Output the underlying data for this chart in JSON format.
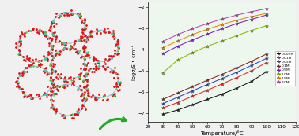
{
  "bg_left": "#fce8e6",
  "bg_right": "#eef7ee",
  "xlabel": "Temperature/°C",
  "ylabel": "logσ/S • cm⁻¹",
  "xlim": [
    20,
    120
  ],
  "ylim": [
    -7.4,
    -1.8
  ],
  "xticks": [
    20,
    30,
    40,
    50,
    60,
    70,
    80,
    90,
    100,
    110,
    120
  ],
  "yticks": [
    -7,
    -6,
    -5,
    -4,
    -3,
    -2
  ],
  "series": [
    {
      "label": "0.005M",
      "color": "#111111",
      "marker": "*",
      "x": [
        30,
        40,
        50,
        60,
        70,
        80,
        90,
        100
      ],
      "y": [
        -7.05,
        -6.85,
        -6.6,
        -6.35,
        -6.1,
        -5.82,
        -5.5,
        -5.05
      ]
    },
    {
      "label": "0.01M",
      "color": "#ee2222",
      "marker": "*",
      "x": [
        30,
        40,
        50,
        60,
        70,
        80,
        90,
        100
      ],
      "y": [
        -6.75,
        -6.5,
        -6.2,
        -5.92,
        -5.62,
        -5.32,
        -5.0,
        -4.62
      ]
    },
    {
      "label": "0.05M",
      "color": "#2244cc",
      "marker": "*",
      "x": [
        30,
        40,
        50,
        60,
        70,
        80,
        90,
        100
      ],
      "y": [
        -6.55,
        -6.25,
        -5.95,
        -5.65,
        -5.37,
        -5.07,
        -4.75,
        -4.42
      ]
    },
    {
      "label": "0.1M",
      "color": "#882222",
      "marker": "*",
      "x": [
        30,
        40,
        50,
        60,
        70,
        80,
        90,
        100
      ],
      "y": [
        -6.35,
        -6.05,
        -5.75,
        -5.45,
        -5.17,
        -4.87,
        -4.55,
        -4.22
      ]
    },
    {
      "label": "0.5M",
      "color": "#7722cc",
      "marker": "*",
      "x": [
        30,
        40,
        50,
        60,
        70,
        80,
        90,
        100
      ],
      "y": [
        -4.2,
        -3.85,
        -3.55,
        -3.28,
        -3.02,
        -2.78,
        -2.58,
        -2.38
      ]
    },
    {
      "label": "1.0M",
      "color": "#88bb00",
      "marker": "*",
      "x": [
        30,
        40,
        50,
        60,
        70,
        80,
        90,
        100
      ],
      "y": [
        -5.1,
        -4.5,
        -4.15,
        -3.85,
        -3.6,
        -3.35,
        -3.1,
        -2.88
      ]
    },
    {
      "label": "1.5M",
      "color": "#ee8800",
      "marker": "*",
      "x": [
        30,
        40,
        50,
        60,
        70,
        80,
        90,
        100
      ],
      "y": [
        -3.92,
        -3.6,
        -3.3,
        -3.05,
        -2.82,
        -2.62,
        -2.45,
        -2.3
      ]
    },
    {
      "label": "2.0M",
      "color": "#bb44bb",
      "marker": "*",
      "x": [
        30,
        40,
        50,
        60,
        70,
        80,
        90,
        100
      ],
      "y": [
        -3.62,
        -3.3,
        -3.02,
        -2.78,
        -2.57,
        -2.38,
        -2.22,
        -2.08
      ]
    }
  ]
}
